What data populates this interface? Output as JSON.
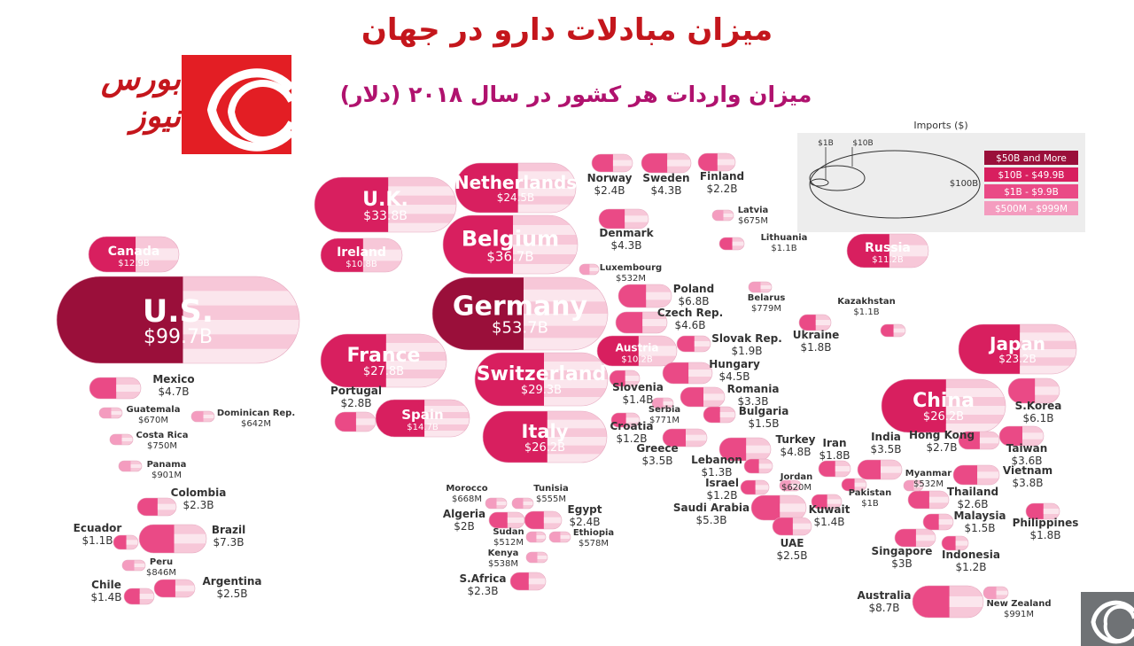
{
  "title": "میزان مبادلات دارو در جهان",
  "subtitle": "میزان واردات هر کشور در سال ۲۰۱۸ (دلار)",
  "logo": {
    "text": "بورس نیوز",
    "icon": "bourse-news-logo-icon"
  },
  "corner_logo": {
    "icon": "bourse-news-mark-icon"
  },
  "colors": {
    "tier1": "#9a0f3a",
    "tier2": "#d81f5f",
    "tier3": "#ea4a86",
    "tier4": "#f49cbf",
    "title": "#c4161c",
    "subtitle": "#b0126e"
  },
  "chart_data": {
    "type": "bubble",
    "xlabel": "",
    "ylabel": "",
    "legend": {
      "title": "Imports ($)",
      "size_labels": [
        "$1B",
        "$10B",
        "$100B"
      ],
      "tiers": [
        "$50B and More",
        "$10B - $49.9B",
        "$1B - $9.9B",
        "$500M - $999M"
      ],
      "placement": "top-right"
    },
    "countries": [
      {
        "name": "U.S.",
        "value": "$99.7B"
      },
      {
        "name": "Germany",
        "value": "$53.7B"
      },
      {
        "name": "Belgium",
        "value": "$36.7B"
      },
      {
        "name": "U.K.",
        "value": "$33.8B"
      },
      {
        "name": "Switzerland",
        "value": "$29.3B"
      },
      {
        "name": "France",
        "value": "$27.8B"
      },
      {
        "name": "China",
        "value": "$26.2B"
      },
      {
        "name": "Italy",
        "value": "$26.2B"
      },
      {
        "name": "Netherlands",
        "value": "$24.5B"
      },
      {
        "name": "Japan",
        "value": "$23.2B"
      },
      {
        "name": "Spain",
        "value": "$14.7B"
      },
      {
        "name": "Canada",
        "value": "$12.9B"
      },
      {
        "name": "Russia",
        "value": "$11.2B"
      },
      {
        "name": "Ireland",
        "value": "$10.8B"
      },
      {
        "name": "Austria",
        "value": "$10.2B"
      },
      {
        "name": "Australia",
        "value": "$8.7B"
      },
      {
        "name": "Brazil",
        "value": "$7.3B"
      },
      {
        "name": "Poland",
        "value": "$6.8B"
      },
      {
        "name": "S.Korea",
        "value": "$6.1B"
      },
      {
        "name": "Saudi Arabia",
        "value": "$5.3B"
      },
      {
        "name": "Turkey",
        "value": "$4.8B"
      },
      {
        "name": "Mexico",
        "value": "$4.7B"
      },
      {
        "name": "Czech Rep.",
        "value": "$4.6B"
      },
      {
        "name": "Hungary",
        "value": "$4.5B"
      },
      {
        "name": "Sweden",
        "value": "$4.3B"
      },
      {
        "name": "Denmark",
        "value": "$4.3B"
      },
      {
        "name": "Vietnam",
        "value": "$3.8B"
      },
      {
        "name": "Taiwan",
        "value": "$3.6B"
      },
      {
        "name": "Greece",
        "value": "$3.5B"
      },
      {
        "name": "India",
        "value": "$3.5B"
      },
      {
        "name": "Romania",
        "value": "$3.3B"
      },
      {
        "name": "Singapore",
        "value": "$3B"
      },
      {
        "name": "Portugal",
        "value": "$2.8B"
      },
      {
        "name": "Hong Kong",
        "value": "$2.7B"
      },
      {
        "name": "Thailand",
        "value": "$2.6B"
      },
      {
        "name": "Argentina",
        "value": "$2.5B"
      },
      {
        "name": "UAE",
        "value": "$2.5B"
      },
      {
        "name": "Norway",
        "value": "$2.4B"
      },
      {
        "name": "Egypt",
        "value": "$2.4B"
      },
      {
        "name": "Colombia",
        "value": "$2.3B"
      },
      {
        "name": "S.Africa",
        "value": "$2.3B"
      },
      {
        "name": "Finland",
        "value": "$2.2B"
      },
      {
        "name": "Algeria",
        "value": "$2B"
      },
      {
        "name": "Slovak Rep.",
        "value": "$1.9B"
      },
      {
        "name": "Ukraine",
        "value": "$1.8B"
      },
      {
        "name": "Iran",
        "value": "$1.8B"
      },
      {
        "name": "Philippines",
        "value": "$1.8B"
      },
      {
        "name": "Bulgaria",
        "value": "$1.5B"
      },
      {
        "name": "Malaysia",
        "value": "$1.5B"
      },
      {
        "name": "Slovenia",
        "value": "$1.4B"
      },
      {
        "name": "Chile",
        "value": "$1.4B"
      },
      {
        "name": "Kuwait",
        "value": "$1.4B"
      },
      {
        "name": "Lebanon",
        "value": "$1.3B"
      },
      {
        "name": "Croatia",
        "value": "$1.2B"
      },
      {
        "name": "Israel",
        "value": "$1.2B"
      },
      {
        "name": "Indonesia",
        "value": "$1.2B"
      },
      {
        "name": "Ecuador",
        "value": "$1.1B"
      },
      {
        "name": "Lithuania",
        "value": "$1.1B"
      },
      {
        "name": "Kazakhstan",
        "value": "$1.1B"
      },
      {
        "name": "Pakistan",
        "value": "$1B"
      },
      {
        "name": "New Zealand",
        "value": "$991M"
      },
      {
        "name": "Panama",
        "value": "$901M"
      },
      {
        "name": "Peru",
        "value": "$846M"
      },
      {
        "name": "Belarus",
        "value": "$779M"
      },
      {
        "name": "Serbia",
        "value": "$771M"
      },
      {
        "name": "Costa Rica",
        "value": "$750M"
      },
      {
        "name": "Latvia",
        "value": "$675M"
      },
      {
        "name": "Guatemala",
        "value": "$670M"
      },
      {
        "name": "Morocco",
        "value": "$668M"
      },
      {
        "name": "Dominican Rep.",
        "value": "$642M"
      },
      {
        "name": "Jordan",
        "value": "$620M"
      },
      {
        "name": "Ethiopia",
        "value": "$578M"
      },
      {
        "name": "Tunisia",
        "value": "$555M"
      },
      {
        "name": "Kenya",
        "value": "$538M"
      },
      {
        "name": "Luxembourg",
        "value": "$532M"
      },
      {
        "name": "Myanmar",
        "value": "$532M"
      },
      {
        "name": "Sudan",
        "value": "$512M"
      }
    ]
  }
}
